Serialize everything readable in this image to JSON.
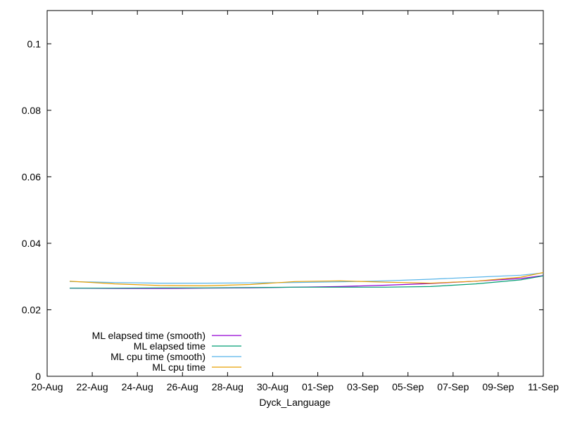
{
  "chart_data": {
    "type": "line",
    "title": "",
    "xlabel": "Dyck_Language",
    "ylabel": "",
    "xlim": [
      "2023-08-20",
      "2023-09-11"
    ],
    "ylim": [
      0,
      0.11
    ],
    "grid": false,
    "legend_position": "bottom-left",
    "x_ticks": [
      "20-Aug",
      "22-Aug",
      "24-Aug",
      "26-Aug",
      "28-Aug",
      "30-Aug",
      "01-Sep",
      "03-Sep",
      "05-Sep",
      "07-Sep",
      "09-Sep",
      "11-Sep"
    ],
    "x_tick_dates": [
      "2023-08-20",
      "2023-08-22",
      "2023-08-24",
      "2023-08-26",
      "2023-08-28",
      "2023-08-30",
      "2023-09-01",
      "2023-09-03",
      "2023-09-05",
      "2023-09-07",
      "2023-09-09",
      "2023-09-11"
    ],
    "y_ticks": [
      0,
      0.02,
      0.04,
      0.06,
      0.08,
      0.1
    ],
    "y_tick_labels": [
      "0",
      "0.02",
      "0.04",
      "0.06",
      "0.08",
      "0.1"
    ],
    "series": [
      {
        "name": "ML elapsed time (smooth)",
        "color": "#9400d3",
        "x": [
          "2023-08-21",
          "2023-08-23",
          "2023-08-25",
          "2023-08-27",
          "2023-08-29",
          "2023-08-31",
          "2023-09-02",
          "2023-09-04",
          "2023-09-06",
          "2023-09-08",
          "2023-09-10",
          "2023-09-11"
        ],
        "y": [
          0.0265,
          0.0264,
          0.0264,
          0.0265,
          0.0266,
          0.0268,
          0.027,
          0.0274,
          0.0279,
          0.0286,
          0.0294,
          0.0303
        ]
      },
      {
        "name": "ML elapsed time",
        "color": "#009e73",
        "x": [
          "2023-08-21",
          "2023-08-23",
          "2023-08-25",
          "2023-08-27",
          "2023-08-29",
          "2023-08-31",
          "2023-09-02",
          "2023-09-04",
          "2023-09-06",
          "2023-09-08",
          "2023-09-10",
          "2023-09-11"
        ],
        "y": [
          0.0265,
          0.0265,
          0.0266,
          0.0266,
          0.0267,
          0.0268,
          0.0268,
          0.0268,
          0.027,
          0.0278,
          0.029,
          0.0302
        ]
      },
      {
        "name": "ML cpu time (smooth)",
        "color": "#56b4e9",
        "x": [
          "2023-08-21",
          "2023-08-23",
          "2023-08-25",
          "2023-08-27",
          "2023-08-29",
          "2023-08-31",
          "2023-09-02",
          "2023-09-04",
          "2023-09-06",
          "2023-09-08",
          "2023-09-10",
          "2023-09-11"
        ],
        "y": [
          0.0285,
          0.0282,
          0.028,
          0.028,
          0.0281,
          0.0282,
          0.0284,
          0.0287,
          0.0292,
          0.0298,
          0.0304,
          0.0311
        ]
      },
      {
        "name": "ML cpu time",
        "color": "#e69f00",
        "x": [
          "2023-08-21",
          "2023-08-23",
          "2023-08-25",
          "2023-08-27",
          "2023-08-29",
          "2023-08-31",
          "2023-09-02",
          "2023-09-04",
          "2023-09-06",
          "2023-09-08",
          "2023-09-10",
          "2023-09-11"
        ],
        "y": [
          0.0286,
          0.0278,
          0.0273,
          0.0272,
          0.0276,
          0.0285,
          0.0287,
          0.0283,
          0.028,
          0.0286,
          0.0298,
          0.0312
        ]
      }
    ]
  }
}
